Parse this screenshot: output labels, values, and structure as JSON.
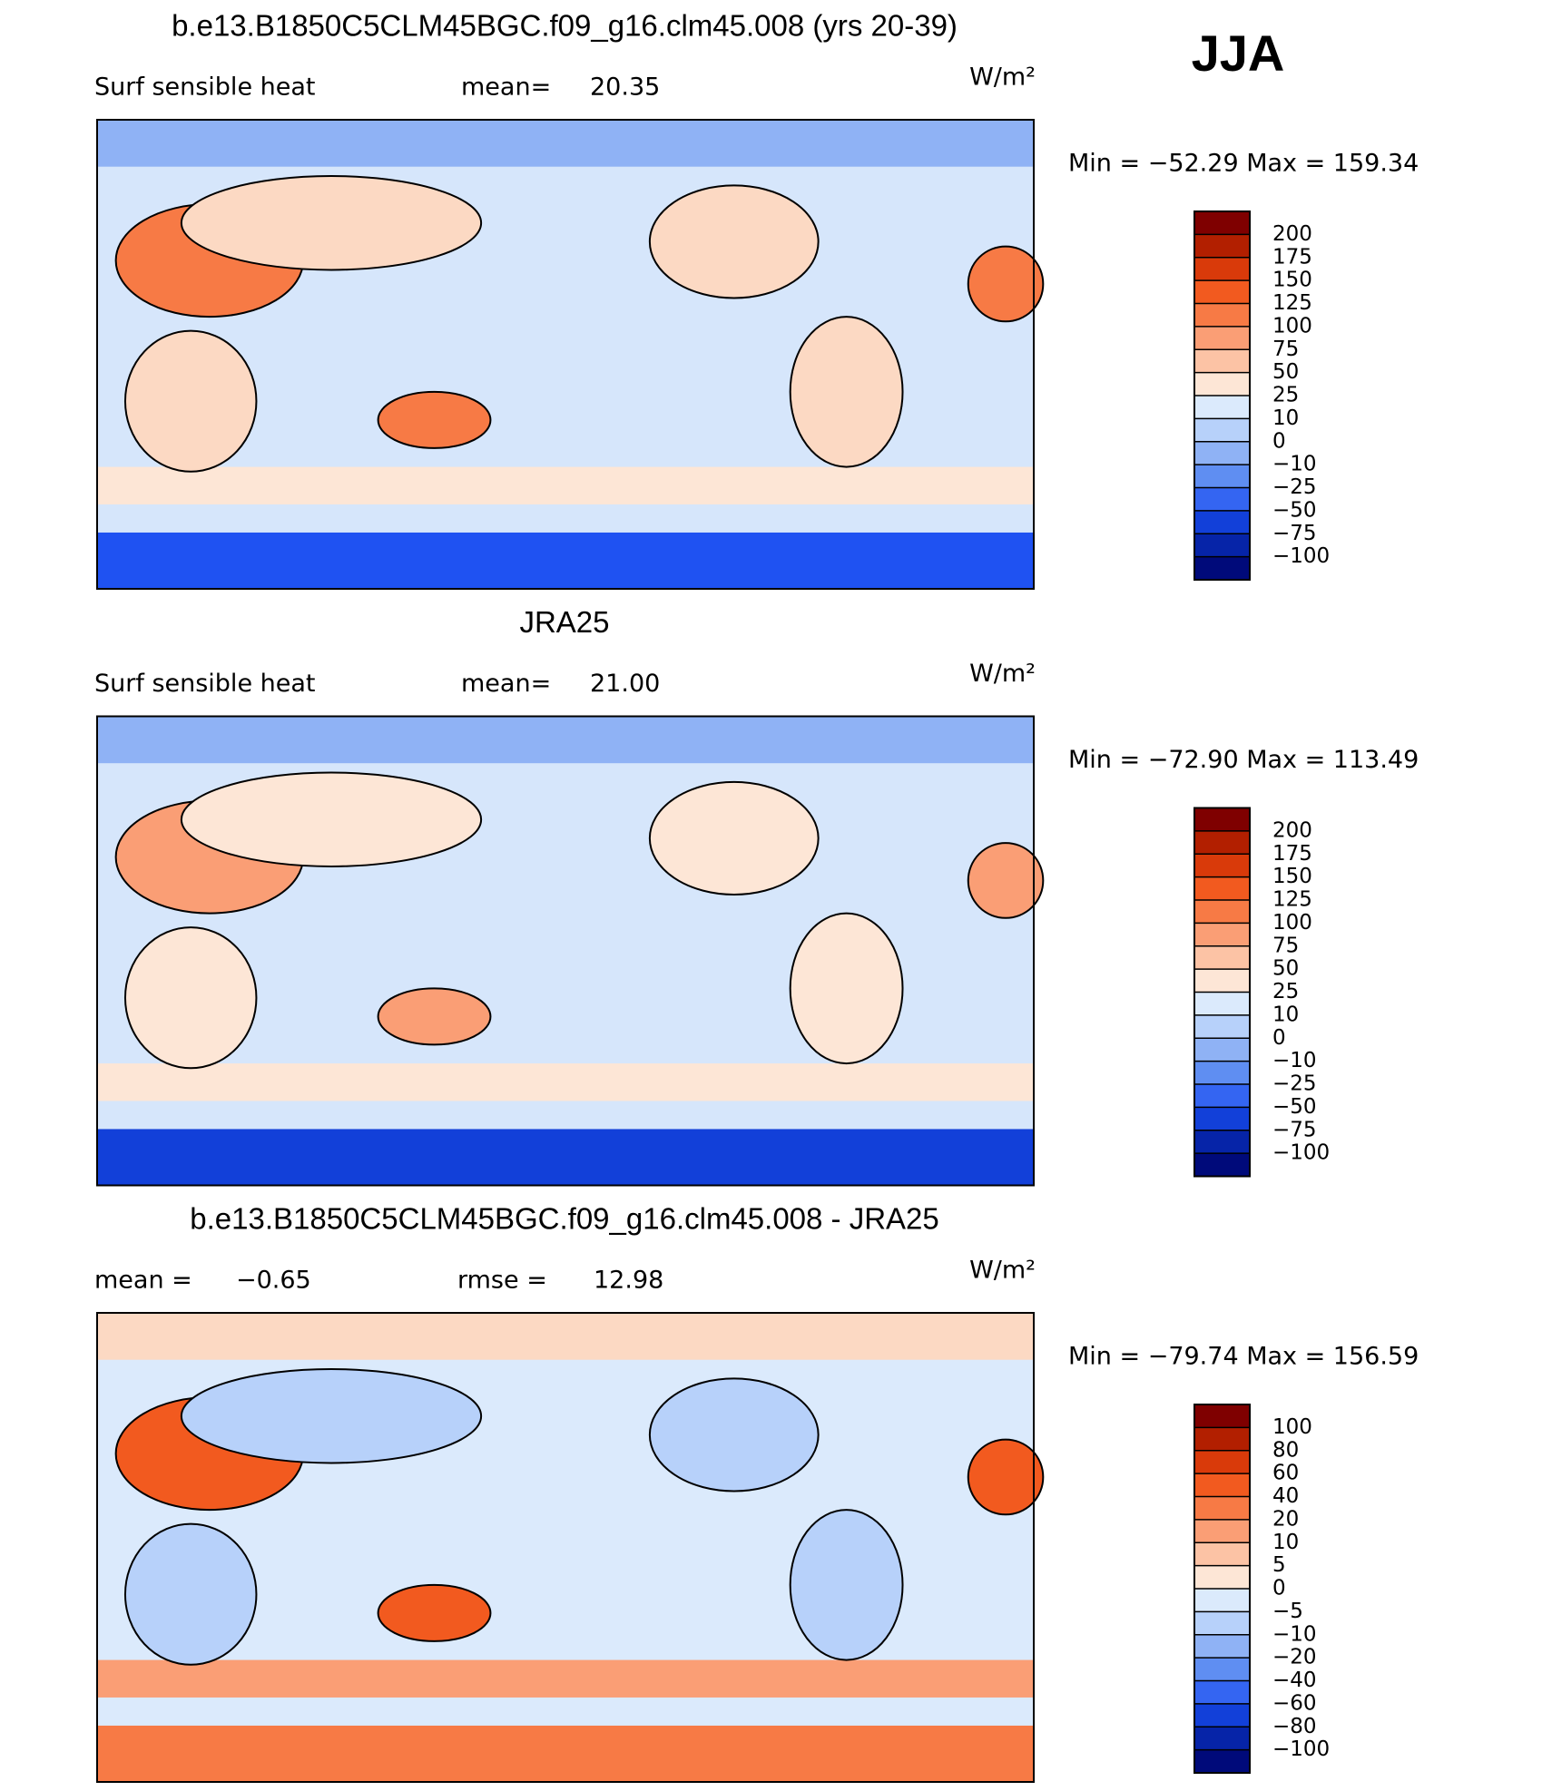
{
  "header": {
    "season": "JJA"
  },
  "chart_data": [
    {
      "type": "map",
      "title": "b.e13.B1850C5CLM45BGC.f09_g16.clm45.008 (yrs 20-39)",
      "annotations": [
        "Surf  sensible heat",
        "mean=",
        "20.35",
        "W/m²"
      ],
      "range_text": "Min  =  −52.29  Max  =  159.34",
      "colorbar": {
        "levels": [
          200,
          175,
          150,
          125,
          100,
          75,
          50,
          25,
          10,
          0,
          {
            "value": -10,
            "label": "−10"
          },
          {
            "value": -25,
            "label": "−25"
          },
          {
            "value": -50,
            "label": "−50"
          },
          {
            "value": -75,
            "label": "−75"
          },
          {
            "value": -100,
            "label": "−100"
          }
        ],
        "colors": [
          "#7f0000",
          "#b21f00",
          "#d93a0a",
          "#f25a1f",
          "#f77a45",
          "#fa9e75",
          "#fcc3a5",
          "#fde6d6",
          "#dbeafc",
          "#b7d1fa",
          "#8fb2f5",
          "#5f8ef2",
          "#3465f2",
          "#1240d9",
          "#0624a8",
          "#000a7a"
        ]
      }
    },
    {
      "type": "map",
      "title": "JRA25",
      "annotations": [
        "Surf  sensible heat",
        "mean=",
        "21.00",
        "W/m²"
      ],
      "range_text": "Min  =  −72.90  Max  =  113.49",
      "colorbar": {
        "levels": [
          200,
          175,
          150,
          125,
          100,
          75,
          50,
          25,
          10,
          0,
          {
            "value": -10,
            "label": "−10"
          },
          {
            "value": -25,
            "label": "−25"
          },
          {
            "value": -50,
            "label": "−50"
          },
          {
            "value": -75,
            "label": "−75"
          },
          {
            "value": -100,
            "label": "−100"
          }
        ],
        "colors": [
          "#7f0000",
          "#b21f00",
          "#d93a0a",
          "#f25a1f",
          "#f77a45",
          "#fa9e75",
          "#fcc3a5",
          "#fde6d6",
          "#dbeafc",
          "#b7d1fa",
          "#8fb2f5",
          "#5f8ef2",
          "#3465f2",
          "#1240d9",
          "#0624a8",
          "#000a7a"
        ]
      }
    },
    {
      "type": "map",
      "title": "b.e13.B1850C5CLM45BGC.f09_g16.clm45.008 - JRA25",
      "annotations": [
        "mean  =",
        "−0.65",
        "rmse  =",
        "12.98",
        "W/m²"
      ],
      "range_text": "Min  =  −79.74  Max  =  156.59",
      "colorbar": {
        "levels": [
          100,
          80,
          60,
          40,
          20,
          10,
          5,
          0,
          {
            "value": -5,
            "label": "−5"
          },
          {
            "value": -10,
            "label": "−10"
          },
          {
            "value": -20,
            "label": "−20"
          },
          {
            "value": -40,
            "label": "−40"
          },
          {
            "value": -60,
            "label": "−60"
          },
          {
            "value": -80,
            "label": "−80"
          },
          {
            "value": -100,
            "label": "−100"
          }
        ],
        "colors": [
          "#7f0000",
          "#b21f00",
          "#d93a0a",
          "#f25a1f",
          "#f77a45",
          "#fa9e75",
          "#fcc3a5",
          "#fde6d6",
          "#dbeafc",
          "#b7d1fa",
          "#8fb2f5",
          "#5f8ef2",
          "#3465f2",
          "#1240d9",
          "#0624a8",
          "#000a7a"
        ]
      }
    }
  ]
}
